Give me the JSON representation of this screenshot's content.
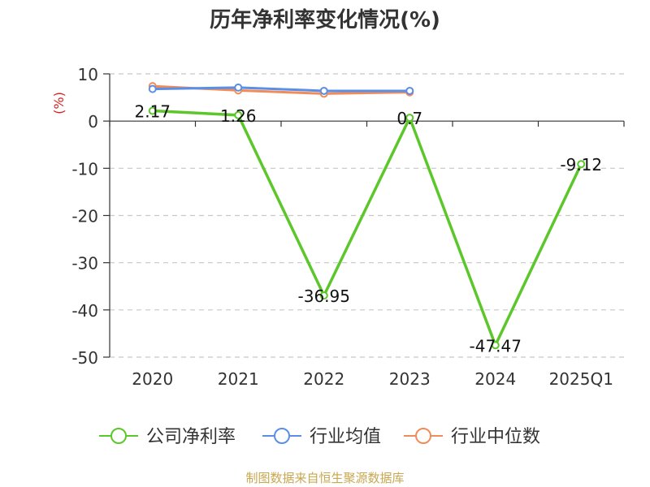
{
  "chart_data": {
    "type": "line",
    "title": "历年净利率变化情况(%)",
    "ylabel": "(%)",
    "categories": [
      "2020",
      "2021",
      "2022",
      "2023",
      "2024",
      "2025Q1"
    ],
    "ylim": [
      -50,
      10
    ],
    "yticks": [
      10,
      0,
      -10,
      -20,
      -30,
      -40,
      -50
    ],
    "grid": true,
    "legend_position": "bottom",
    "series": [
      {
        "name": "公司净利率",
        "color": "#5cc72a",
        "values": [
          2.17,
          1.26,
          -36.95,
          0.7,
          -47.47,
          -9.12
        ],
        "labels": [
          "2.17",
          "1.26",
          "-36.95",
          "0.7",
          "-47.47",
          "-9.12"
        ]
      },
      {
        "name": "行业均值",
        "color": "#5b8ee6",
        "values": [
          6.8,
          7.1,
          6.4,
          6.4,
          null,
          null
        ]
      },
      {
        "name": "行业中位数",
        "color": "#f08c5a",
        "values": [
          7.4,
          6.5,
          5.8,
          6.1,
          null,
          null
        ]
      }
    ]
  },
  "footer": {
    "source": "制图数据来自恒生聚源数据库"
  }
}
